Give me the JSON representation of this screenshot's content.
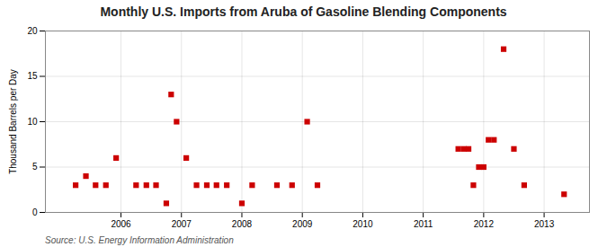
{
  "chart_data": {
    "type": "scatter",
    "title": "Monthly U.S. Imports from Aruba of Gasoline Blending Components",
    "ylabel": "Thousand Barrels per Day",
    "source": "Source: U.S. Energy Information Administration",
    "x": [
      2005.25,
      2005.42,
      2005.58,
      2005.75,
      2005.92,
      2006.25,
      2006.42,
      2006.58,
      2006.75,
      2006.83,
      2006.92,
      2007.08,
      2007.25,
      2007.42,
      2007.58,
      2007.75,
      2008.0,
      2008.17,
      2008.58,
      2008.83,
      2009.08,
      2009.25,
      2011.58,
      2011.67,
      2011.75,
      2011.83,
      2011.92,
      2012.0,
      2012.08,
      2012.17,
      2012.33,
      2012.5,
      2012.67,
      2013.33
    ],
    "values": [
      3.0,
      4.0,
      3.0,
      3.0,
      6.0,
      3.0,
      3.0,
      3.0,
      1.0,
      13.0,
      10.0,
      6.0,
      3.0,
      3.0,
      3.0,
      3.0,
      1.0,
      3.0,
      3.0,
      3.0,
      10.0,
      3.0,
      7.0,
      7.0,
      7.0,
      3.0,
      5.0,
      5.0,
      8.0,
      8.0,
      18.0,
      7.0,
      3.0,
      2.0
    ],
    "color": "#cc0000",
    "marker": "square",
    "xlim": [
      2004.75,
      2013.75
    ],
    "ylim": [
      0,
      20
    ],
    "xticks": [
      2006,
      2007,
      2008,
      2009,
      2010,
      2011,
      2012,
      2013
    ],
    "yticks": [
      0,
      5,
      10,
      15,
      20
    ],
    "grid": true
  }
}
